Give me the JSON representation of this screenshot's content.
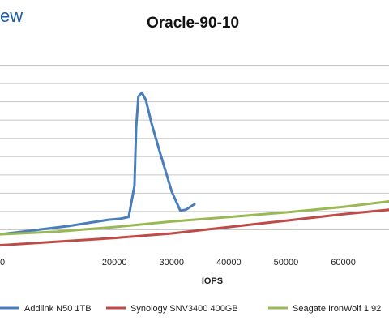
{
  "logo_text": "ew",
  "chart_data": {
    "type": "line",
    "title": "Oracle-90-10",
    "xlabel": "IOPS",
    "ylabel": "",
    "xlim": [
      0,
      68000
    ],
    "ylim": [
      0,
      11
    ],
    "grid": true,
    "legend_position": "bottom",
    "x_ticks": [
      0,
      20000,
      30000,
      40000,
      50000,
      60000
    ],
    "x_tick_labels": [
      "0",
      "20000",
      "30000",
      "40000",
      "50000",
      "60000"
    ],
    "y_gridlines": [
      1,
      2,
      3,
      4,
      5,
      6,
      7,
      8,
      9,
      10
    ],
    "series": [
      {
        "name": "Addlink N50 1TB",
        "color": "#4a7ebb",
        "x": [
          0,
          4000,
          8000,
          12000,
          16000,
          19000,
          21000,
          22500,
          23500,
          23800,
          24200,
          24800,
          25500,
          26500,
          28000,
          30000,
          31500,
          32500,
          33500,
          34000
        ],
        "y": [
          0.75,
          0.9,
          1.05,
          1.2,
          1.4,
          1.55,
          1.6,
          1.7,
          3.4,
          6.6,
          8.3,
          8.5,
          8.1,
          6.8,
          5.2,
          3.1,
          2.05,
          2.1,
          2.3,
          2.4
        ]
      },
      {
        "name": "Synology SNV3400 400GB",
        "color": "#be4b48",
        "x": [
          0,
          10000,
          20000,
          30000,
          40000,
          50000,
          60000,
          68000
        ],
        "y": [
          0.15,
          0.35,
          0.55,
          0.8,
          1.15,
          1.5,
          1.85,
          2.1
        ]
      },
      {
        "name": "Seagate IronWolf 1.92",
        "color": "#98b954",
        "x": [
          0,
          10000,
          20000,
          30000,
          40000,
          50000,
          60000,
          68000
        ],
        "y": [
          0.75,
          0.9,
          1.15,
          1.45,
          1.7,
          1.95,
          2.25,
          2.55
        ]
      }
    ]
  }
}
